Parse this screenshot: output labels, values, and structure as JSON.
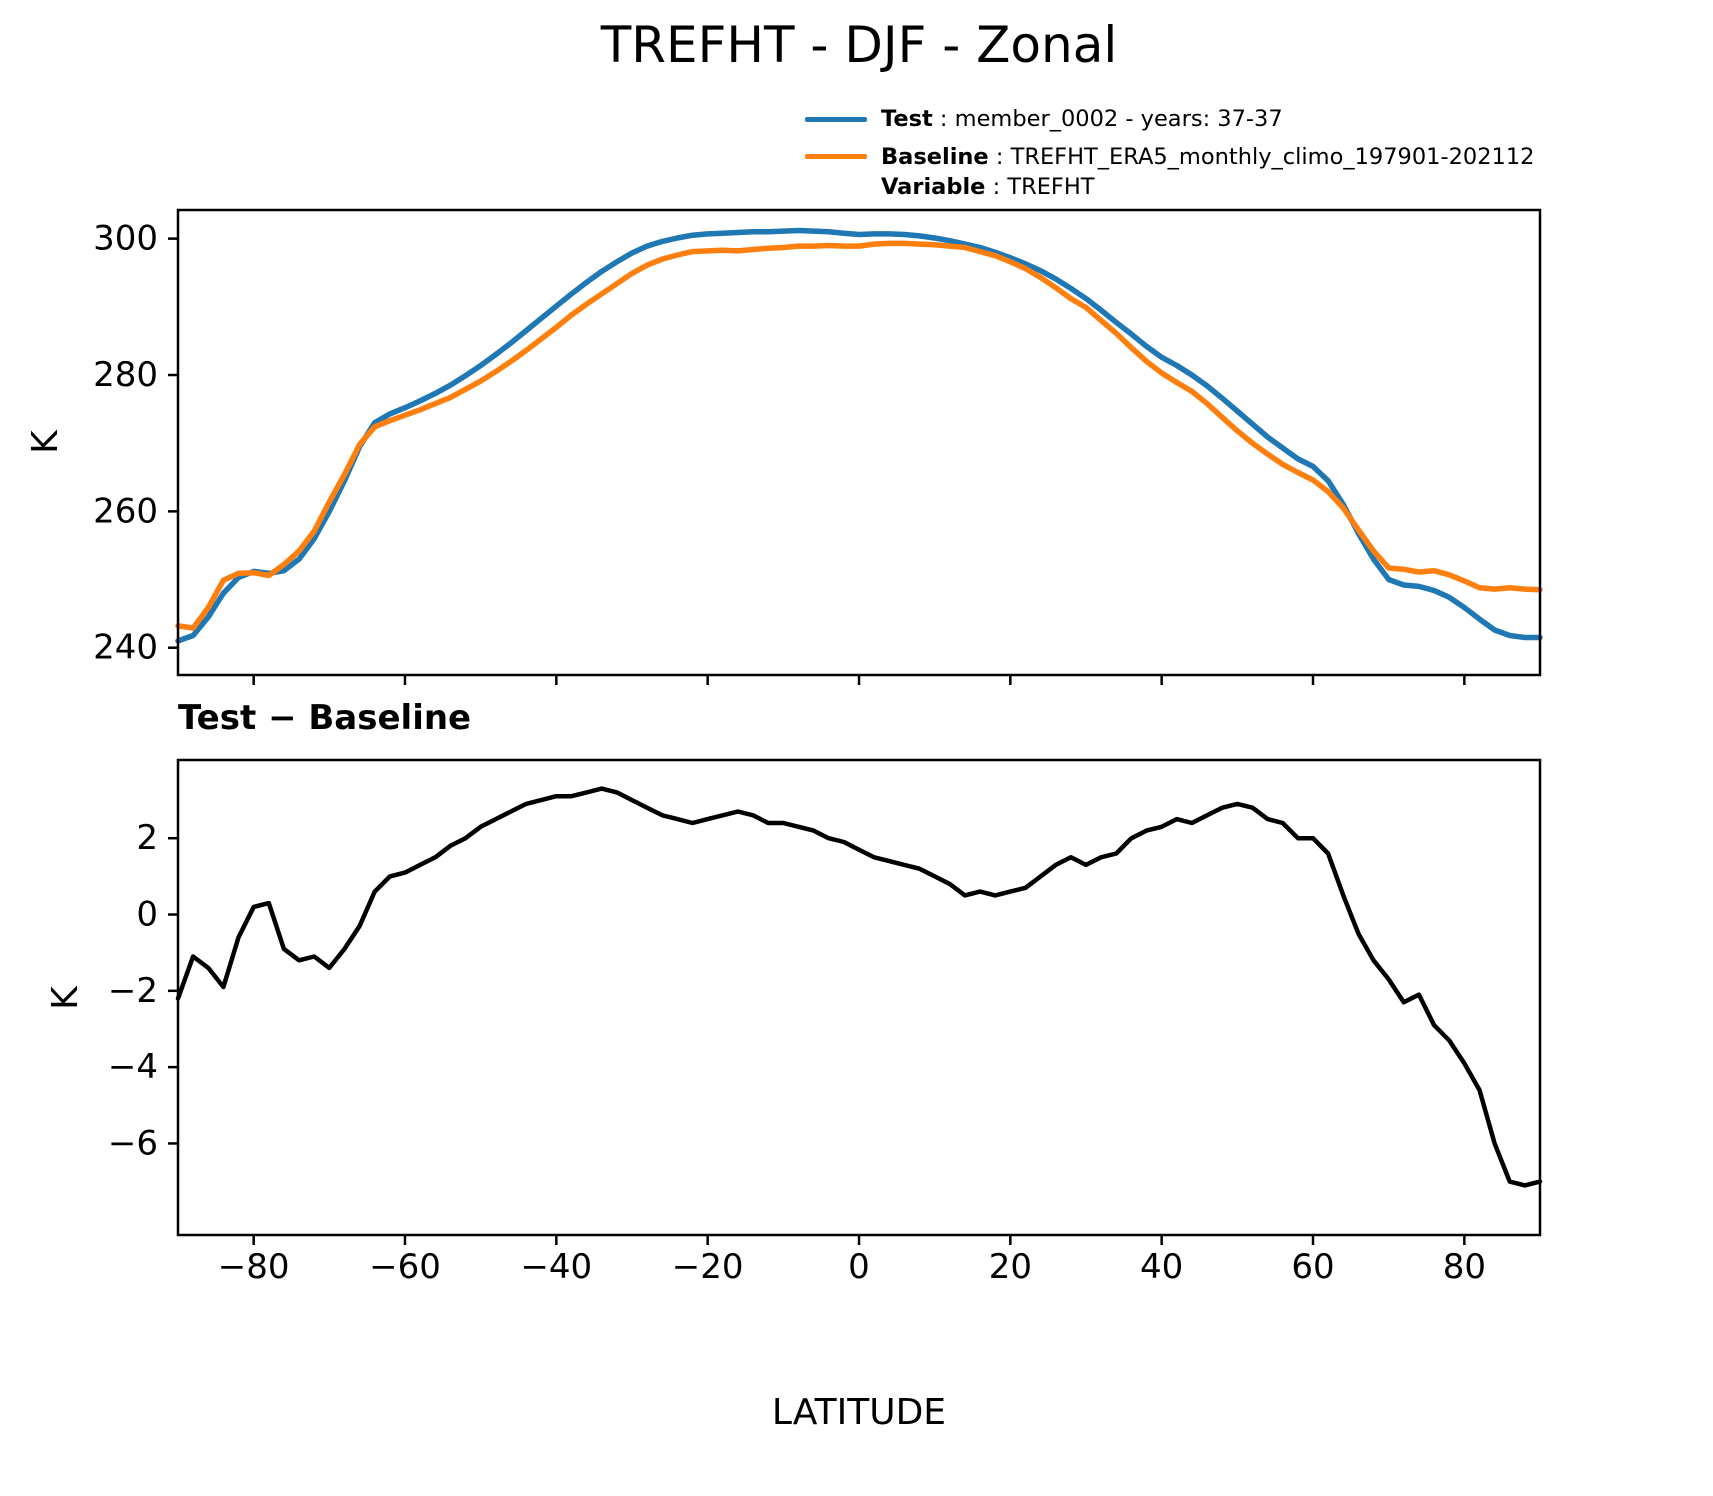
{
  "figure": {
    "title": "TREFHT - DJF - Zonal",
    "legend": {
      "items": [
        {
          "label": "Test",
          "value": " : member_0002 - years: 37-37",
          "color": "#1f77b4"
        },
        {
          "label": "Baseline",
          "value": " : TREFHT_ERA5_monthly_climo_197901-202112",
          "color": "#ff7f0e"
        },
        {
          "label": "Variable",
          "value": " : TREFHT"
        }
      ]
    }
  },
  "chart_data": [
    {
      "id": "zonal",
      "type": "line",
      "title": "TREFHT - DJF - Zonal",
      "ylabel": "K",
      "xlabel": "",
      "legend_position": "upper right, above axes",
      "grid": false,
      "xlim": [
        -90,
        90
      ],
      "ylim": [
        236.0,
        304.2
      ],
      "xticks": [
        -80,
        -60,
        -40,
        -20,
        0,
        20,
        40,
        60,
        80
      ],
      "yticks": [
        240,
        260,
        280,
        300
      ],
      "x": [
        -90,
        -88,
        -86,
        -84,
        -82,
        -80,
        -78,
        -76,
        -74,
        -72,
        -70,
        -68,
        -66,
        -64,
        -62,
        -60,
        -58,
        -56,
        -54,
        -52,
        -50,
        -48,
        -46,
        -44,
        -42,
        -40,
        -38,
        -36,
        -34,
        -32,
        -30,
        -28,
        -26,
        -24,
        -22,
        -20,
        -18,
        -16,
        -14,
        -12,
        -10,
        -8,
        -6,
        -4,
        -2,
        0,
        2,
        4,
        6,
        8,
        10,
        12,
        14,
        16,
        18,
        20,
        22,
        24,
        26,
        28,
        30,
        32,
        34,
        36,
        38,
        40,
        42,
        44,
        46,
        48,
        50,
        52,
        54,
        56,
        58,
        60,
        62,
        64,
        66,
        68,
        70,
        72,
        74,
        76,
        78,
        80,
        82,
        84,
        86,
        88,
        90
      ],
      "series": [
        {
          "name": "Test",
          "color": "#1f77b4",
          "values": [
            241.0,
            241.8,
            244.5,
            248.0,
            250.3,
            251.2,
            250.9,
            251.3,
            253.0,
            256.0,
            260.0,
            264.5,
            269.5,
            273.0,
            274.3,
            275.2,
            276.2,
            277.3,
            278.5,
            279.9,
            281.4,
            283.0,
            284.7,
            286.5,
            288.3,
            290.1,
            291.9,
            293.6,
            295.2,
            296.6,
            297.9,
            298.9,
            299.6,
            300.1,
            300.5,
            300.7,
            300.8,
            300.9,
            301.0,
            301.0,
            301.1,
            301.2,
            301.1,
            301.0,
            300.8,
            300.6,
            300.7,
            300.7,
            300.6,
            300.4,
            300.1,
            299.7,
            299.2,
            298.7,
            298.0,
            297.2,
            296.3,
            295.3,
            294.1,
            292.7,
            291.2,
            289.5,
            287.7,
            286.0,
            284.2,
            282.6,
            281.4,
            280.0,
            278.4,
            276.6,
            274.7,
            272.8,
            270.9,
            269.3,
            267.7,
            266.6,
            264.5,
            261.0,
            256.8,
            253.0,
            250.0,
            249.2,
            249.0,
            248.4,
            247.4,
            245.9,
            244.2,
            242.6,
            241.8,
            241.5,
            241.5
          ]
        },
        {
          "name": "Baseline",
          "color": "#ff7f0e",
          "values": [
            243.2,
            242.9,
            245.9,
            249.9,
            250.9,
            251.0,
            250.6,
            252.2,
            254.2,
            257.1,
            261.4,
            265.4,
            269.8,
            272.4,
            273.3,
            274.1,
            274.9,
            275.8,
            276.7,
            277.9,
            279.1,
            280.5,
            282.0,
            283.6,
            285.3,
            287.0,
            288.8,
            290.4,
            291.9,
            293.4,
            294.9,
            296.1,
            297.0,
            297.6,
            298.1,
            298.2,
            298.3,
            298.2,
            298.4,
            298.6,
            298.7,
            298.9,
            298.9,
            299.0,
            298.9,
            298.9,
            299.2,
            299.3,
            299.3,
            299.2,
            299.1,
            298.9,
            298.7,
            298.1,
            297.5,
            296.6,
            295.6,
            294.3,
            292.8,
            291.2,
            289.9,
            288.0,
            286.1,
            284.0,
            282.0,
            280.3,
            278.9,
            277.6,
            275.8,
            273.8,
            271.8,
            270.0,
            268.4,
            266.9,
            265.7,
            264.6,
            262.9,
            260.5,
            257.3,
            254.2,
            251.7,
            251.5,
            251.1,
            251.3,
            250.7,
            249.8,
            248.8,
            248.6,
            248.8,
            248.6,
            248.5
          ]
        }
      ]
    },
    {
      "id": "diff",
      "type": "line",
      "title": "Test − Baseline",
      "ylabel": "K",
      "xlabel": "LATITUDE",
      "grid": false,
      "xlim": [
        -90,
        90
      ],
      "ylim": [
        -8.4,
        4.05
      ],
      "xticks": [
        -80,
        -60,
        -40,
        -20,
        0,
        20,
        40,
        60,
        80
      ],
      "yticks": [
        -6,
        -4,
        -2,
        0,
        2
      ],
      "x": [
        -90,
        -88,
        -86,
        -84,
        -82,
        -80,
        -78,
        -76,
        -74,
        -72,
        -70,
        -68,
        -66,
        -64,
        -62,
        -60,
        -58,
        -56,
        -54,
        -52,
        -50,
        -48,
        -46,
        -44,
        -42,
        -40,
        -38,
        -36,
        -34,
        -32,
        -30,
        -28,
        -26,
        -24,
        -22,
        -20,
        -18,
        -16,
        -14,
        -12,
        -10,
        -8,
        -6,
        -4,
        -2,
        0,
        2,
        4,
        6,
        8,
        10,
        12,
        14,
        16,
        18,
        20,
        22,
        24,
        26,
        28,
        30,
        32,
        34,
        36,
        38,
        40,
        42,
        44,
        46,
        48,
        50,
        52,
        54,
        56,
        58,
        60,
        62,
        64,
        66,
        68,
        70,
        72,
        74,
        76,
        78,
        80,
        82,
        84,
        86,
        88,
        90
      ],
      "series": [
        {
          "name": "Test minus Baseline",
          "color": "#000000",
          "values": [
            -2.2,
            -1.1,
            -1.4,
            -1.9,
            -0.6,
            0.2,
            0.3,
            -0.9,
            -1.2,
            -1.1,
            -1.4,
            -0.9,
            -0.3,
            0.6,
            1.0,
            1.1,
            1.3,
            1.5,
            1.8,
            2.0,
            2.3,
            2.5,
            2.7,
            2.9,
            3.0,
            3.1,
            3.1,
            3.2,
            3.3,
            3.2,
            3.0,
            2.8,
            2.6,
            2.5,
            2.4,
            2.5,
            2.6,
            2.7,
            2.6,
            2.4,
            2.4,
            2.3,
            2.2,
            2.0,
            1.9,
            1.7,
            1.5,
            1.4,
            1.3,
            1.2,
            1.0,
            0.8,
            0.5,
            0.6,
            0.5,
            0.6,
            0.7,
            1.0,
            1.3,
            1.5,
            1.3,
            1.5,
            1.6,
            2.0,
            2.2,
            2.3,
            2.5,
            2.4,
            2.6,
            2.8,
            2.9,
            2.8,
            2.5,
            2.4,
            2.0,
            2.0,
            1.6,
            0.5,
            -0.5,
            -1.2,
            -1.7,
            -2.3,
            -2.1,
            -2.9,
            -3.3,
            -3.9,
            -4.6,
            -6.0,
            -7.0,
            -7.1,
            -7.0
          ]
        }
      ]
    }
  ]
}
